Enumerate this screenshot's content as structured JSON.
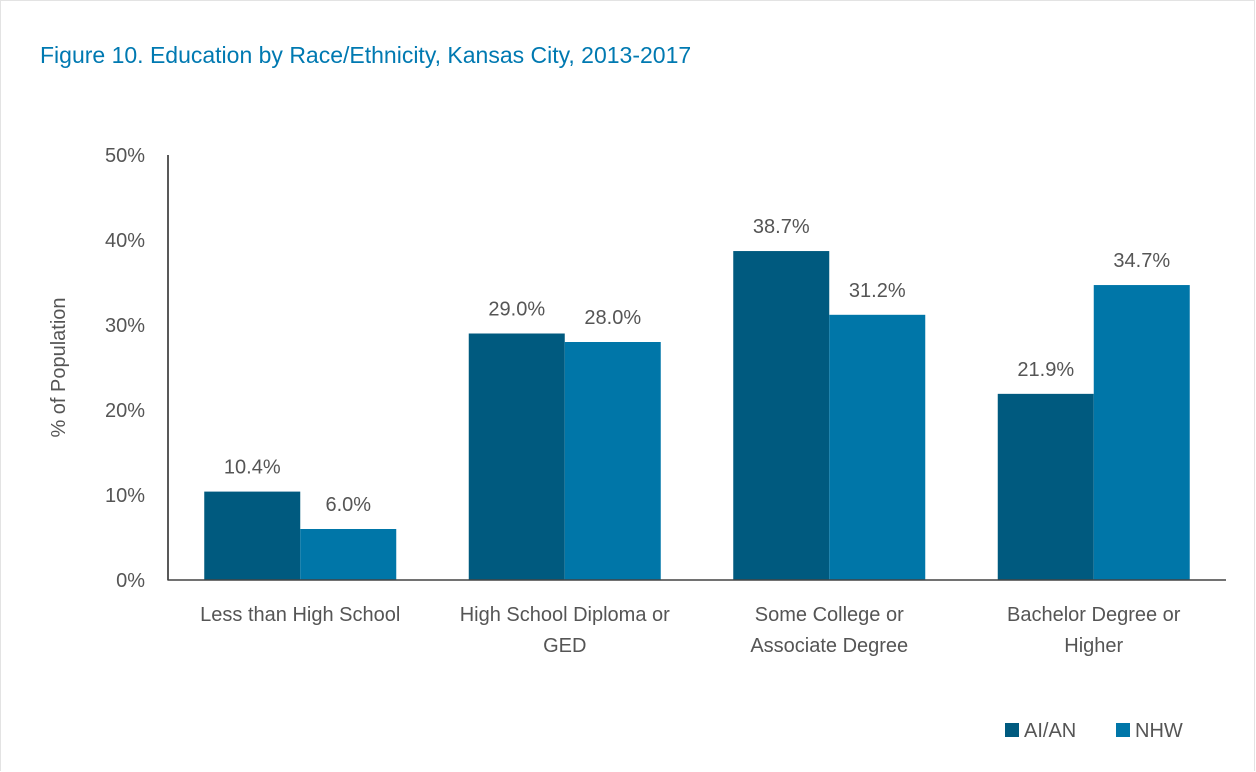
{
  "chart_data": {
    "type": "bar",
    "title": "Figure 10. Education by Race/Ethnicity, Kansas City, 2013-2017",
    "ylabel": "% of Population",
    "xlabel": "",
    "ylim": [
      0,
      50
    ],
    "yticks": [
      0,
      10,
      20,
      30,
      40,
      50
    ],
    "ytick_labels": [
      "0%",
      "10%",
      "20%",
      "30%",
      "40%",
      "50%"
    ],
    "categories": [
      [
        "Less than High School"
      ],
      [
        "High School Diploma or",
        "GED"
      ],
      [
        "Some College or",
        "Associate Degree"
      ],
      [
        "Bachelor Degree or",
        "Higher"
      ]
    ],
    "series": [
      {
        "name": "AI/AN",
        "color": "#005a7f",
        "values": [
          10.4,
          29.0,
          38.7,
          21.9
        ],
        "labels": [
          "10.4%",
          "29.0%",
          "38.7%",
          "21.9%"
        ]
      },
      {
        "name": "NHW",
        "color": "#0076a8",
        "values": [
          6.0,
          28.0,
          31.2,
          34.7
        ],
        "labels": [
          "6.0%",
          "28.0%",
          "31.2%",
          "34.7%"
        ]
      }
    ],
    "legend_position": "bottom-right",
    "grid": false
  }
}
